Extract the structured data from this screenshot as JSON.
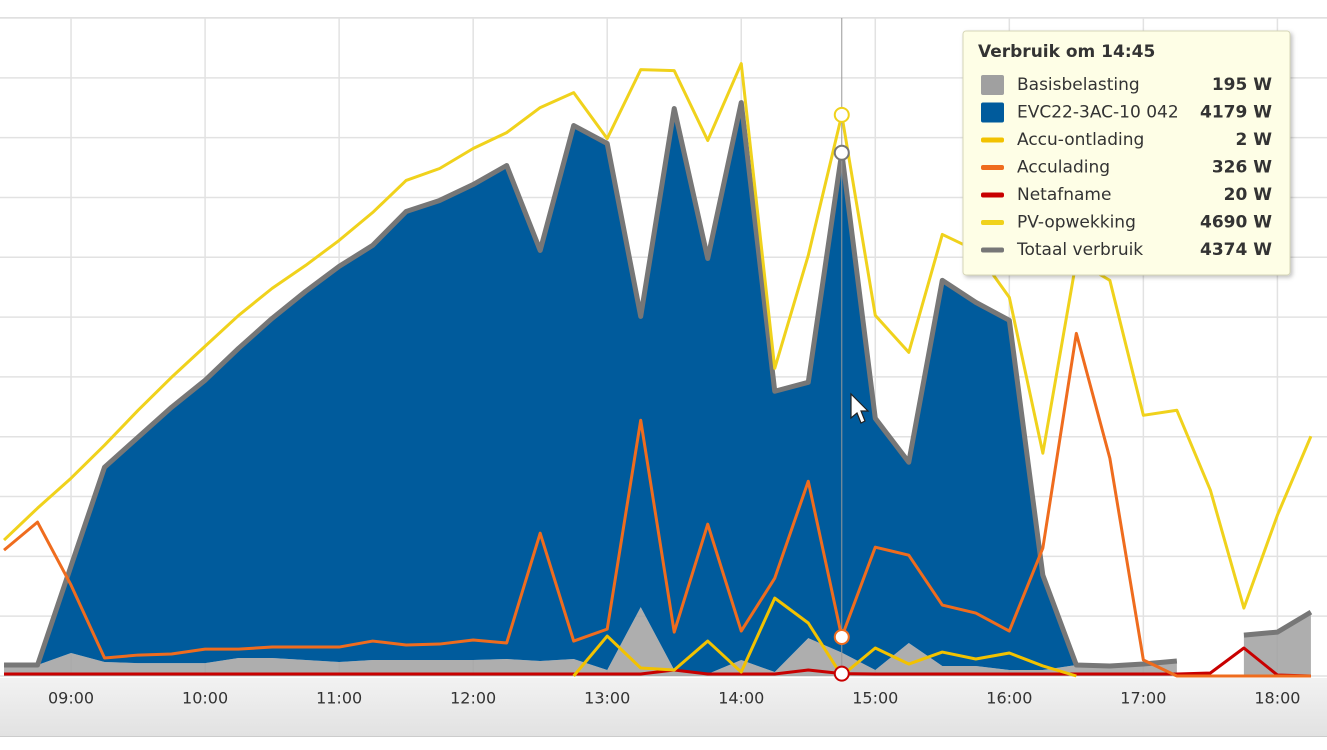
{
  "chart_data": {
    "type": "area-line",
    "x": [
      8.5,
      8.75,
      9,
      9.25,
      9.5,
      9.75,
      10,
      10.25,
      10.5,
      10.75,
      11,
      11.25,
      11.5,
      11.75,
      12,
      12.25,
      12.5,
      12.75,
      13,
      13.25,
      13.5,
      13.75,
      14,
      14.25,
      14.5,
      14.75,
      15,
      15.25,
      15.5,
      15.75,
      16,
      16.25,
      16.5,
      16.75,
      17,
      17.25,
      17.5,
      17.75,
      18,
      18.25
    ],
    "xlim": [
      8.47,
      18.37
    ],
    "xticks": [
      {
        "value": 9,
        "label": "09:00"
      },
      {
        "value": 10,
        "label": "10:00"
      },
      {
        "value": 11,
        "label": "11:00"
      },
      {
        "value": 12,
        "label": "12:00"
      },
      {
        "value": 13,
        "label": "13:00"
      },
      {
        "value": 14,
        "label": "14:00"
      },
      {
        "value": 15,
        "label": "15:00"
      },
      {
        "value": 16,
        "label": "16:00"
      },
      {
        "value": 17,
        "label": "17:00"
      },
      {
        "value": 18,
        "label": "18:00"
      }
    ],
    "ylim": [
      0,
      5500
    ],
    "yticks": [
      0,
      500,
      1000,
      1500,
      2000,
      2500,
      3000,
      3500,
      4000,
      4500,
      5000,
      5500
    ],
    "grid": true,
    "series": [
      {
        "name": "Basisbelasting",
        "type": "area",
        "color": "#a0a0a0",
        "values": [
          92,
          92,
          192,
          117,
          108,
          108,
          108,
          150,
          150,
          134,
          117,
          134,
          134,
          134,
          134,
          142,
          125,
          142,
          50,
          576,
          50,
          17,
          134,
          33,
          317,
          195,
          50,
          276,
          84,
          84,
          50,
          50,
          92,
          84,
          100,
          125,
          null,
          342,
          367,
          534
        ]
      },
      {
        "name": "EVC22-3AC-10 042",
        "type": "area",
        "color": "#005b9c",
        "values": [
          0,
          0,
          728,
          1628,
          1888,
          2138,
          2364,
          2589,
          2839,
          3081,
          3307,
          3465,
          3749,
          3841,
          3974,
          4125,
          3432,
          4459,
          4401,
          2430,
          4693,
          3473,
          4659,
          2347,
          2138,
          4179,
          2104,
          1511,
          3223,
          3039,
          2923,
          793,
          0,
          0,
          0,
          0,
          null,
          0,
          0,
          0
        ]
      },
      {
        "name": "Accu-ontlading",
        "type": "line",
        "color": "#f2c200",
        "values": [
          null,
          null,
          null,
          null,
          null,
          null,
          null,
          null,
          null,
          null,
          null,
          null,
          null,
          null,
          null,
          null,
          null,
          0,
          334,
          67,
          50,
          292,
          33,
          651,
          443,
          2,
          234,
          100,
          200,
          142,
          192,
          84,
          0,
          null,
          null,
          null,
          null,
          null,
          null,
          null
        ]
      },
      {
        "name": "Acculading",
        "type": "line",
        "color": "#ef6c1e",
        "values": [
          1052,
          1286,
          760,
          150,
          175,
          184,
          225,
          225,
          242,
          242,
          242,
          292,
          259,
          267,
          301,
          276,
          1194,
          292,
          392,
          2138,
          367,
          1269,
          376,
          818,
          1628,
          326,
          1077,
          1010,
          593,
          526,
          376,
          1069,
          2864,
          1820,
          134,
          0,
          0,
          0,
          0,
          0
        ]
      },
      {
        "name": "Netafname",
        "type": "line",
        "color": "#c80000",
        "values": [
          17,
          17,
          17,
          17,
          17,
          17,
          17,
          17,
          17,
          17,
          17,
          17,
          17,
          17,
          17,
          17,
          17,
          17,
          17,
          17,
          50,
          17,
          17,
          17,
          50,
          20,
          17,
          17,
          17,
          17,
          17,
          17,
          17,
          17,
          17,
          17,
          25,
          234,
          8,
          0
        ]
      },
      {
        "name": "PV-opwekking",
        "type": "line",
        "color": "#f0d21c",
        "values": [
          1136,
          1403,
          1653,
          1929,
          2221,
          2497,
          2756,
          3014,
          3240,
          3432,
          3641,
          3874,
          4142,
          4242,
          4409,
          4542,
          4751,
          4876,
          4492,
          5068,
          5060,
          4476,
          5119,
          2572,
          3515,
          4690,
          3014,
          2705,
          3691,
          3557,
          3165,
          1862,
          3474,
          3307,
          2179,
          2221,
          1553,
          568,
          1344,
          2004
        ]
      },
      {
        "name": "Totaal verbruik",
        "type": "line",
        "color": "#777777",
        "values": [
          92,
          92,
          920,
          1745,
          1996,
          2246,
          2472,
          2739,
          2989,
          3215,
          3424,
          3599,
          3883,
          3975,
          4108,
          4267,
          3557,
          4601,
          4451,
          3006,
          4743,
          3490,
          4793,
          2380,
          2455,
          4374,
          2154,
          1787,
          3307,
          3123,
          2973,
          843,
          92,
          84,
          100,
          125,
          null,
          342,
          367,
          534
        ]
      }
    ],
    "hover": 14.75,
    "tooltip": {
      "title": "Verbruik om 14:45",
      "labels": [
        "195 W",
        "4179 W",
        "2 W",
        "326 W",
        "20 W",
        "4690 W",
        "4374 W"
      ]
    }
  }
}
